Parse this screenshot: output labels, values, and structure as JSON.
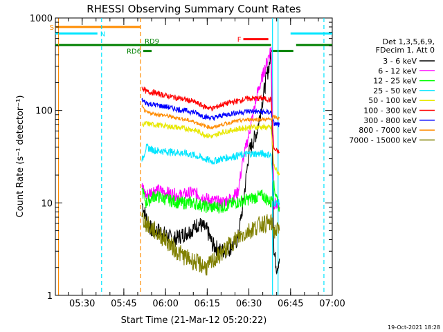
{
  "chart_data": {
    "type": "line",
    "title": "RHESSI Observing Summary Count Rates",
    "xlabel": "Start Time (21-Mar-12 05:20:22)",
    "ylabel": "Count Rate (s⁻¹ detector⁻¹)",
    "y_scale": "log",
    "ylim": [
      1,
      1000
    ],
    "xlim": [
      "05:20:22",
      "07:00:00"
    ],
    "x_ticks": [
      "05:30",
      "05:45",
      "06:00",
      "06:15",
      "06:30",
      "06:45",
      "07:00"
    ],
    "y_ticks": [
      "1",
      "10",
      "100",
      "1000"
    ],
    "legend": {
      "placement": "right",
      "header": [
        "Det 1,3,5,6,9,",
        "FDecim 1, Att 0"
      ],
      "entries": [
        {
          "label": "3 - 6 keV",
          "color": "#000000"
        },
        {
          "label": "6 - 12 keV",
          "color": "#ff00ff"
        },
        {
          "label": "12 - 25 keV",
          "color": "#00ff00"
        },
        {
          "label": "25 - 50 keV",
          "color": "#00e5ff"
        },
        {
          "label": "50 - 100 keV",
          "color": "#e8e800"
        },
        {
          "label": "100 - 300 keV",
          "color": "#ff0000"
        },
        {
          "label": "300 - 800 keV",
          "color": "#0000ff"
        },
        {
          "label": "800 - 7000 keV",
          "color": "#ff8c00"
        },
        {
          "label": "7000 - 15000 keV",
          "color": "#808000"
        }
      ]
    },
    "series": [
      {
        "name": "3 - 6 keV",
        "color": "#000000",
        "points": [
          [
            "05:51:30",
            10
          ],
          [
            "05:53",
            7
          ],
          [
            "05:55",
            5
          ],
          [
            "05:58",
            5
          ],
          [
            "06:00",
            4.5
          ],
          [
            "06:03",
            4
          ],
          [
            "06:06",
            4.5
          ],
          [
            "06:09",
            5
          ],
          [
            "06:12",
            6
          ],
          [
            "06:15",
            5
          ],
          [
            "06:17",
            3.5
          ],
          [
            "06:20",
            3
          ],
          [
            "06:23",
            3.2
          ],
          [
            "06:26",
            4
          ],
          [
            "06:28",
            10
          ],
          [
            "06:30",
            35
          ],
          [
            "06:33",
            60
          ],
          [
            "06:36",
            200
          ],
          [
            "06:38",
            400
          ],
          [
            "06:39",
            3
          ],
          [
            "06:40",
            2
          ],
          [
            "06:41",
            2.5
          ]
        ]
      },
      {
        "name": "6 - 12 keV",
        "color": "#ff00ff",
        "points": [
          [
            "05:51:30",
            15
          ],
          [
            "05:53",
            12
          ],
          [
            "05:56",
            14
          ],
          [
            "06:00",
            13
          ],
          [
            "06:05",
            12
          ],
          [
            "06:10",
            13
          ],
          [
            "06:15",
            11
          ],
          [
            "06:20",
            10
          ],
          [
            "06:23",
            11
          ],
          [
            "06:26",
            13
          ],
          [
            "06:28",
            30
          ],
          [
            "06:30",
            55
          ],
          [
            "06:33",
            150
          ],
          [
            "06:36",
            300
          ],
          [
            "06:38",
            480
          ],
          [
            "06:39",
            10
          ],
          [
            "06:41",
            9
          ]
        ]
      },
      {
        "name": "12 - 25 keV",
        "color": "#00ff00",
        "points": [
          [
            "05:51:30",
            14
          ],
          [
            "05:53",
            10
          ],
          [
            "05:56",
            12
          ],
          [
            "06:00",
            11
          ],
          [
            "06:05",
            10
          ],
          [
            "06:10",
            10
          ],
          [
            "06:15",
            9
          ],
          [
            "06:20",
            9
          ],
          [
            "06:25",
            10
          ],
          [
            "06:30",
            11
          ],
          [
            "06:35",
            12
          ],
          [
            "06:38",
            10
          ],
          [
            "06:39",
            15
          ],
          [
            "06:41",
            9
          ]
        ]
      },
      {
        "name": "25 - 50 keV",
        "color": "#00e5ff",
        "points": [
          [
            "05:51:30",
            28
          ],
          [
            "05:53",
            40
          ],
          [
            "05:56",
            37
          ],
          [
            "06:00",
            36
          ],
          [
            "06:05",
            35
          ],
          [
            "06:10",
            33
          ],
          [
            "06:14",
            30
          ],
          [
            "06:17",
            28
          ],
          [
            "06:20",
            30
          ],
          [
            "06:25",
            32
          ],
          [
            "06:30",
            34
          ],
          [
            "06:35",
            34
          ],
          [
            "06:38",
            33
          ],
          [
            "06:39",
            10
          ],
          [
            "06:41",
            10
          ]
        ]
      },
      {
        "name": "50 - 100 keV",
        "color": "#e8e800",
        "points": [
          [
            "05:51:30",
            70
          ],
          [
            "05:53",
            72
          ],
          [
            "05:56",
            70
          ],
          [
            "06:00",
            68
          ],
          [
            "06:05",
            65
          ],
          [
            "06:10",
            62
          ],
          [
            "06:14",
            55
          ],
          [
            "06:17",
            52
          ],
          [
            "06:20",
            58
          ],
          [
            "06:25",
            62
          ],
          [
            "06:30",
            66
          ],
          [
            "06:35",
            66
          ],
          [
            "06:38",
            65
          ],
          [
            "06:39",
            25
          ],
          [
            "06:41",
            20
          ]
        ]
      },
      {
        "name": "100 - 300 keV",
        "color": "#ff0000",
        "points": [
          [
            "05:51:30",
            180
          ],
          [
            "05:53",
            160
          ],
          [
            "05:56",
            155
          ],
          [
            "06:00",
            145
          ],
          [
            "06:05",
            135
          ],
          [
            "06:10",
            125
          ],
          [
            "06:14",
            110
          ],
          [
            "06:17",
            105
          ],
          [
            "06:20",
            115
          ],
          [
            "06:25",
            125
          ],
          [
            "06:30",
            135
          ],
          [
            "06:35",
            135
          ],
          [
            "06:38",
            130
          ],
          [
            "06:39",
            38
          ],
          [
            "06:41",
            35
          ]
        ]
      },
      {
        "name": "300 - 800 keV",
        "color": "#0000ff",
        "points": [
          [
            "05:51:30",
            130
          ],
          [
            "05:53",
            120
          ],
          [
            "05:56",
            115
          ],
          [
            "06:00",
            110
          ],
          [
            "06:05",
            102
          ],
          [
            "06:10",
            96
          ],
          [
            "06:14",
            86
          ],
          [
            "06:17",
            82
          ],
          [
            "06:20",
            88
          ],
          [
            "06:25",
            94
          ],
          [
            "06:30",
            98
          ],
          [
            "06:35",
            96
          ],
          [
            "06:38",
            95
          ],
          [
            "06:39",
            72
          ],
          [
            "06:41",
            70
          ]
        ]
      },
      {
        "name": "800 - 7000 keV",
        "color": "#ff8c00",
        "points": [
          [
            "05:51:30",
            110
          ],
          [
            "05:53",
            95
          ],
          [
            "05:56",
            92
          ],
          [
            "06:00",
            88
          ],
          [
            "06:05",
            82
          ],
          [
            "06:10",
            76
          ],
          [
            "06:14",
            68
          ],
          [
            "06:17",
            65
          ],
          [
            "06:20",
            70
          ],
          [
            "06:25",
            76
          ],
          [
            "06:30",
            80
          ],
          [
            "06:35",
            80
          ],
          [
            "06:38",
            80
          ],
          [
            "06:39",
            85
          ],
          [
            "06:41",
            82
          ]
        ]
      },
      {
        "name": "7000 - 15000 keV",
        "color": "#808000",
        "points": [
          [
            "05:51:30",
            7
          ],
          [
            "05:53",
            6
          ],
          [
            "05:56",
            5
          ],
          [
            "06:00",
            4
          ],
          [
            "06:04",
            3
          ],
          [
            "06:08",
            2.5
          ],
          [
            "06:12",
            2.2
          ],
          [
            "06:15",
            2
          ],
          [
            "06:18",
            2.5
          ],
          [
            "06:21",
            3
          ],
          [
            "06:25",
            4
          ],
          [
            "06:30",
            5
          ],
          [
            "06:35",
            6
          ],
          [
            "06:38",
            6
          ],
          [
            "06:39",
            5
          ],
          [
            "06:41",
            5
          ]
        ]
      }
    ],
    "flag_bars": [
      {
        "label": "S",
        "color": "#ff8c00",
        "ranges": [
          [
            "05:20:22",
            "05:51:00"
          ]
        ],
        "level": 800
      },
      {
        "label": "N",
        "color": "#00e5ff",
        "ranges": [
          [
            "05:20:22",
            "05:35:30"
          ],
          [
            "06:45",
            "07:00"
          ]
        ],
        "level": 680
      },
      {
        "label": "F",
        "color": "#ff0000",
        "ranges": [
          [
            "06:28",
            "06:37"
          ]
        ],
        "level": 590
      },
      {
        "label": "RD9",
        "color": "#008000",
        "ranges": [
          [
            "05:20:22",
            "06:38"
          ],
          [
            "06:47",
            "07:00"
          ]
        ],
        "level": 510
      },
      {
        "label": "RD6",
        "color": "#008000",
        "ranges": [
          [
            "05:52",
            "05:55"
          ],
          [
            "06:38",
            "06:46"
          ]
        ],
        "level": 440
      }
    ],
    "vertical_lines": [
      {
        "x": "05:21:30",
        "color": "#ff8c00",
        "style": "solid"
      },
      {
        "x": "05:37:00",
        "color": "#00e5ff",
        "style": "dashed"
      },
      {
        "x": "05:51:00",
        "color": "#ff8c00",
        "style": "dashed"
      },
      {
        "x": "06:38:30",
        "color": "#00e5ff",
        "style": "solid"
      },
      {
        "x": "06:40:30",
        "color": "#00e5ff",
        "style": "solid"
      },
      {
        "x": "06:57:00",
        "color": "#00e5ff",
        "style": "dashed"
      }
    ],
    "footer_timestamp": "19-Oct-2021 18:28"
  }
}
